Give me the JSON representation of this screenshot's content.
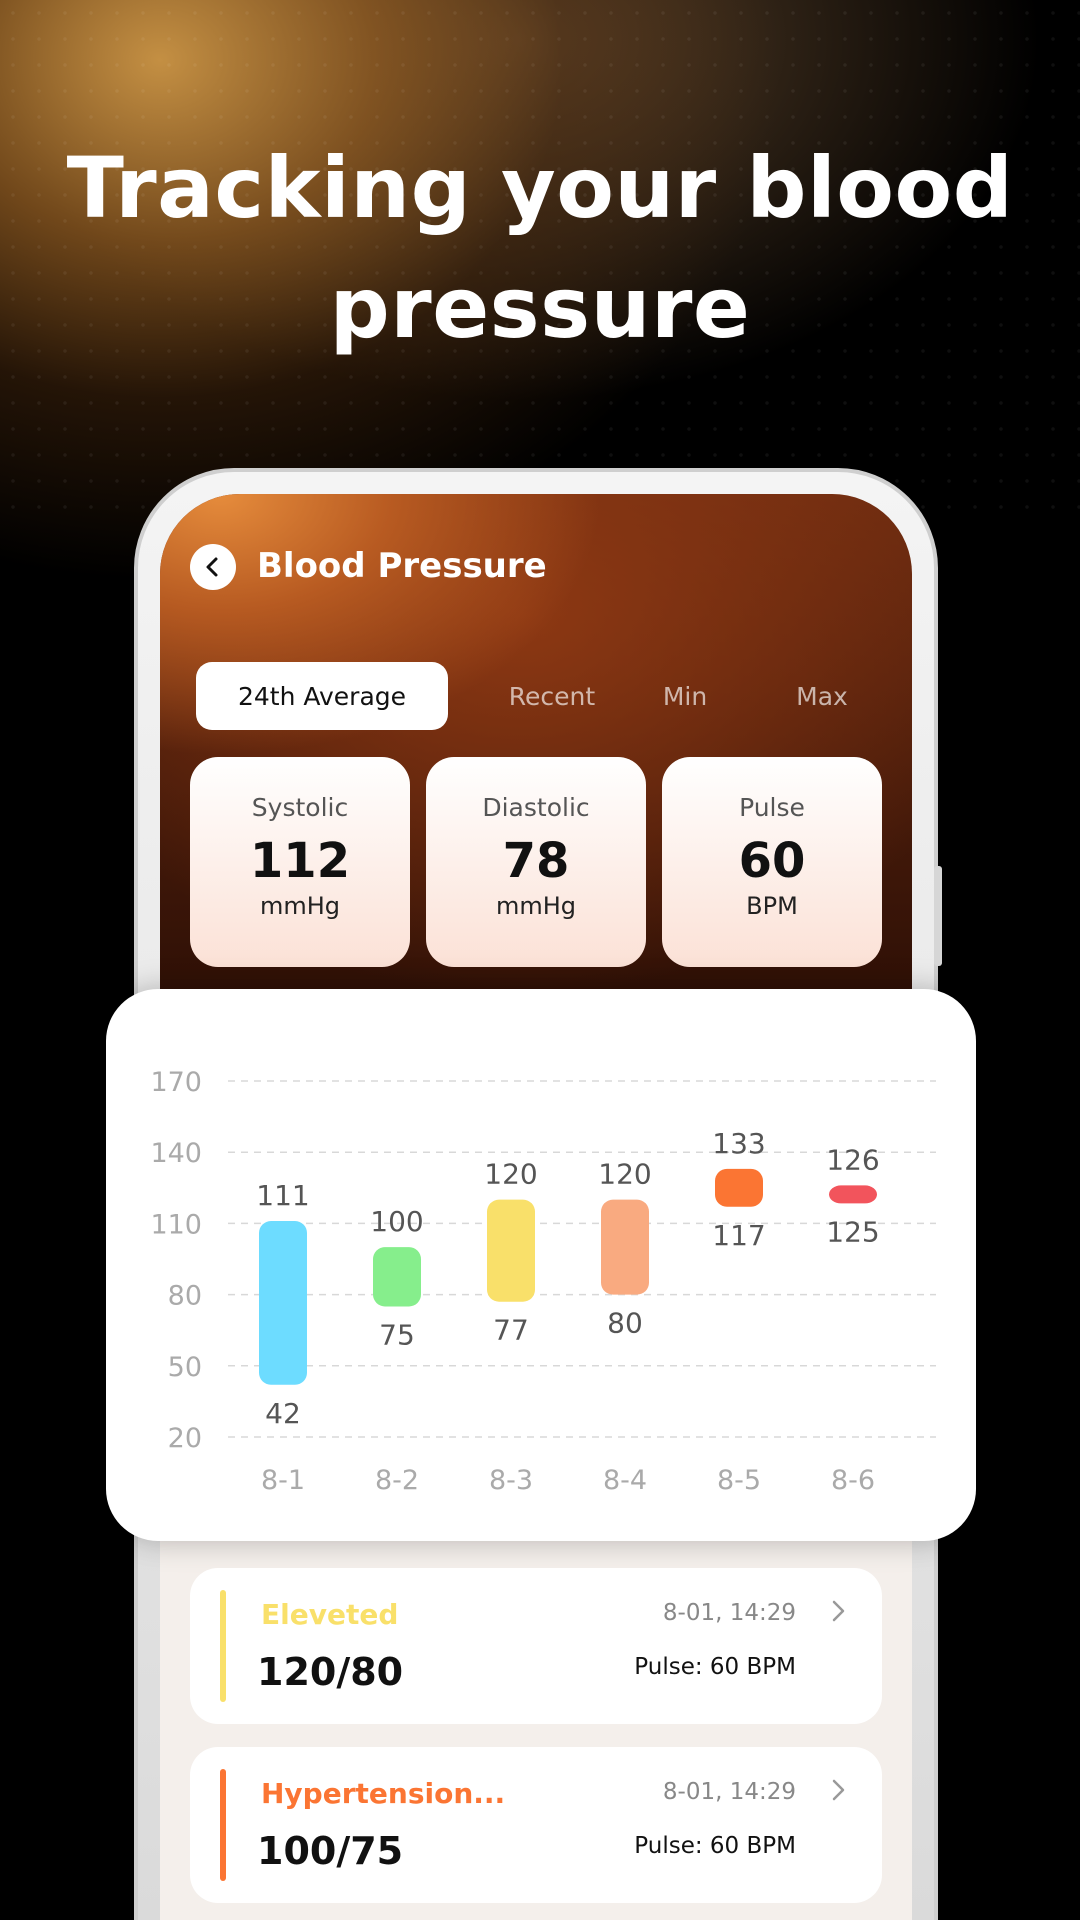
{
  "headline": "Tracking your blood pressure",
  "header": {
    "title": "Blood Pressure",
    "back_icon": "chevron-left-icon"
  },
  "tabs": [
    {
      "label": "24th Average",
      "active": true
    },
    {
      "label": "Recent",
      "active": false
    },
    {
      "label": "Min",
      "active": false
    },
    {
      "label": "Max",
      "active": false
    }
  ],
  "stats": [
    {
      "label": "Systolic",
      "value": "112",
      "unit": "mmHg"
    },
    {
      "label": "Diastolic",
      "value": "78",
      "unit": "mmHg"
    },
    {
      "label": "Pulse",
      "value": "60",
      "unit": "BPM"
    }
  ],
  "chart_data": {
    "type": "bar",
    "categories": [
      "8-1",
      "8-2",
      "8-3",
      "8-4",
      "8-5",
      "8-6"
    ],
    "high": [
      111,
      100,
      120,
      120,
      133,
      126
    ],
    "low": [
      42,
      75,
      77,
      80,
      117,
      125
    ],
    "colors": [
      "#6ddcff",
      "#86ee8c",
      "#f9e06a",
      "#f9aa80",
      "#fb7533",
      "#f2545c"
    ],
    "y_ticks": [
      170,
      140,
      110,
      80,
      50,
      20
    ],
    "ylim": [
      20,
      170
    ],
    "grid": true
  },
  "records": [
    {
      "status": "Eleveted",
      "status_color": "#f9e06a",
      "reading": "120/80",
      "time": "8-01, 14:29",
      "pulse": "Pulse: 60 BPM"
    },
    {
      "status": "Hypertension...",
      "status_color": "#fb7533",
      "reading": "100/75",
      "time": "8-01, 14:29",
      "pulse": "Pulse: 60 BPM"
    }
  ],
  "colors": {
    "accent": "#fb7533",
    "card_bg": "#ffffff",
    "screen_bg": "#f4efeb"
  }
}
